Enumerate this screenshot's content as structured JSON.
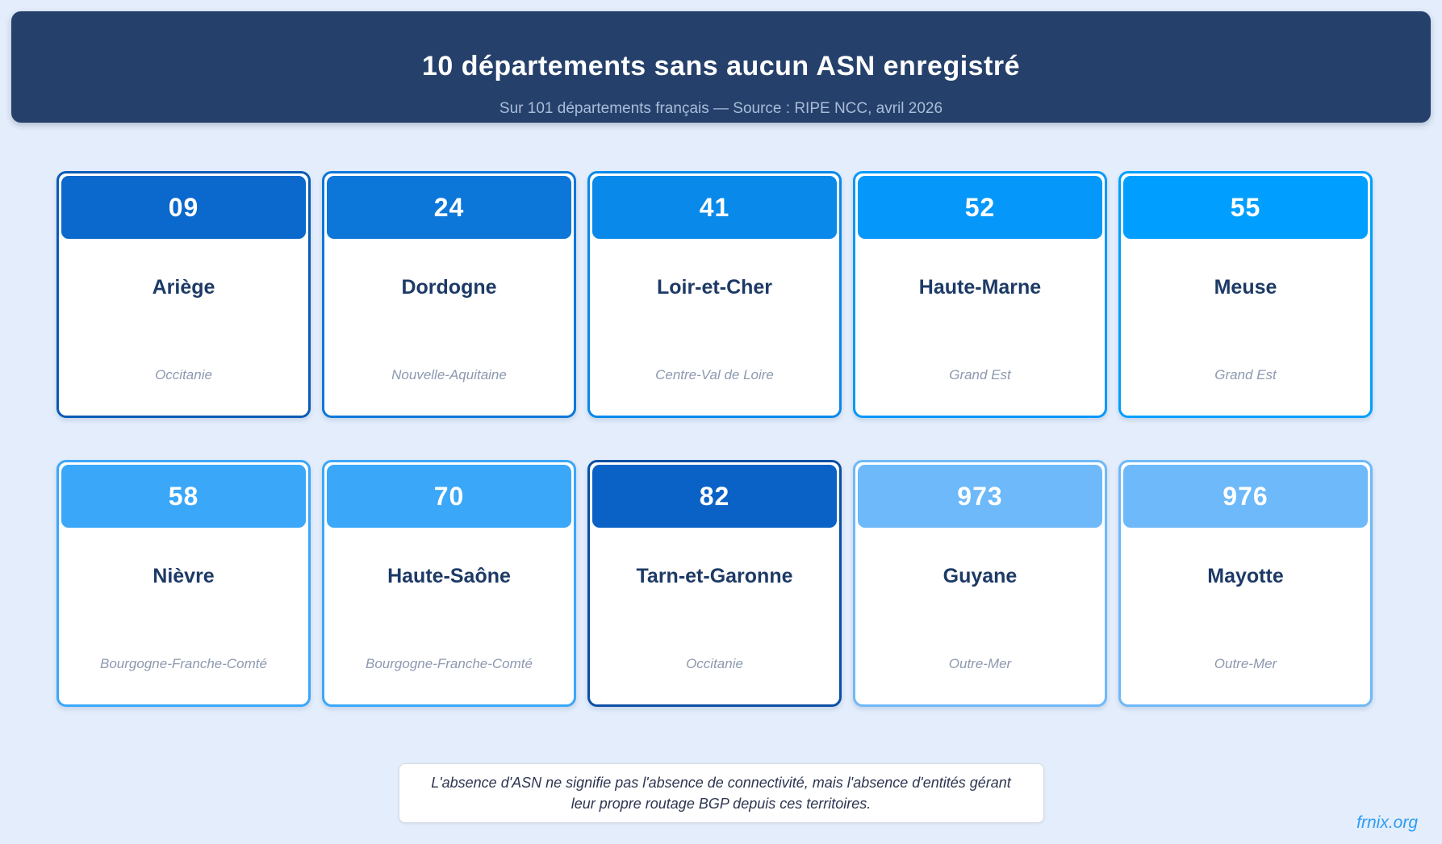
{
  "page": {
    "background": "#e3edfb"
  },
  "header": {
    "title": "10 départements sans aucun ASN enregistré",
    "subtitle": "Sur 101 départements français — Source : RIPE NCC, avril 2026",
    "background": "#25406b",
    "title_color": "#ffffff",
    "subtitle_color": "#a9bdd8"
  },
  "cards": [
    {
      "code": "09",
      "name": "Ariège",
      "region": "Occitanie",
      "color": "#0b68cc",
      "border": "#0a5bb5"
    },
    {
      "code": "24",
      "name": "Dordogne",
      "region": "Nouvelle-Aquitaine",
      "color": "#0d77d9",
      "border": "#0d77d9"
    },
    {
      "code": "41",
      "name": "Loir-et-Cher",
      "region": "Centre-Val de Loire",
      "color": "#0989e9",
      "border": "#0989e9"
    },
    {
      "code": "52",
      "name": "Haute-Marne",
      "region": "Grand Est",
      "color": "#0598fa",
      "border": "#0598fa"
    },
    {
      "code": "55",
      "name": "Meuse",
      "region": "Grand Est",
      "color": "#009fff",
      "border": "#009fff"
    },
    {
      "code": "58",
      "name": "Nièvre",
      "region": "Bourgogne-Franche-Comté",
      "color": "#3aa7f9",
      "border": "#3aa7f9"
    },
    {
      "code": "70",
      "name": "Haute-Saône",
      "region": "Bourgogne-Franche-Comté",
      "color": "#3aa7f9",
      "border": "#3aa7f9"
    },
    {
      "code": "82",
      "name": "Tarn-et-Garonne",
      "region": "Occitanie",
      "color": "#0a62c7",
      "border": "#0b4fa5"
    },
    {
      "code": "973",
      "name": "Guyane",
      "region": "Outre-Mer",
      "color": "#6db9f9",
      "border": "#6db9f9"
    },
    {
      "code": "976",
      "name": "Mayotte",
      "region": "Outre-Mer",
      "color": "#6db9f9",
      "border": "#6db9f9"
    }
  ],
  "note": {
    "text": "L'absence d'ASN ne signifie pas l'absence de connectivité, mais l'absence d'entités gérant leur propre routage BGP depuis ces territoires."
  },
  "footer": {
    "link_label": "frnix.org",
    "link_color": "#2e9cf5"
  },
  "chart_data": {
    "type": "table",
    "title": "10 départements sans aucun ASN enregistré",
    "subtitle": "Sur 101 départements français — Source : RIPE NCC, avril 2026",
    "columns": [
      "code",
      "departement",
      "region"
    ],
    "rows": [
      [
        "09",
        "Ariège",
        "Occitanie"
      ],
      [
        "24",
        "Dordogne",
        "Nouvelle-Aquitaine"
      ],
      [
        "41",
        "Loir-et-Cher",
        "Centre-Val de Loire"
      ],
      [
        "52",
        "Haute-Marne",
        "Grand Est"
      ],
      [
        "55",
        "Meuse",
        "Grand Est"
      ],
      [
        "58",
        "Nièvre",
        "Bourgogne-Franche-Comté"
      ],
      [
        "70",
        "Haute-Saône",
        "Bourgogne-Franche-Comté"
      ],
      [
        "82",
        "Tarn-et-Garonne",
        "Occitanie"
      ],
      [
        "973",
        "Guyane",
        "Outre-Mer"
      ],
      [
        "976",
        "Mayotte",
        "Outre-Mer"
      ]
    ],
    "layout": {
      "grid": "2 rows x 5 columns of cards",
      "legend": "none",
      "axes": "none"
    }
  }
}
